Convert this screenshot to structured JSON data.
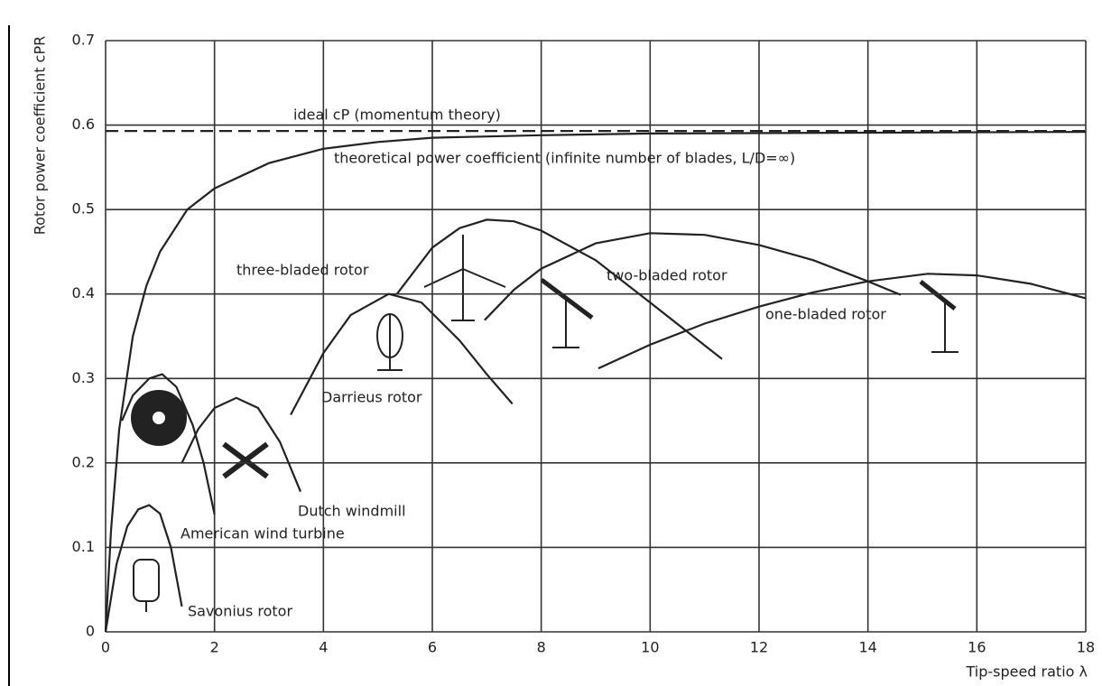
{
  "chart_data": {
    "type": "line",
    "x_label": "Tip-speed ratio λ",
    "y_label": "Rotor power coefficient cPR",
    "xlim": [
      0,
      18
    ],
    "xticks": [
      0,
      2,
      4,
      6,
      8,
      10,
      12,
      14,
      16,
      18
    ],
    "ylim": [
      0,
      0.7
    ],
    "yticks": [
      0,
      0.1,
      0.2,
      0.3,
      0.4,
      0.5,
      0.6,
      0.7
    ],
    "grid": true,
    "series": [
      {
        "name": "ideal cP (momentum theory)",
        "color": "#222",
        "dashed": true,
        "x": [
          0,
          18
        ],
        "values": [
          0.593,
          0.593
        ]
      },
      {
        "name": "theoretical power coefficient (infinite number of blades, L/D=∞)",
        "color": "#222",
        "dashed": false,
        "x": [
          0,
          0.1,
          0.25,
          0.5,
          0.75,
          1,
          1.5,
          2,
          3,
          4,
          5,
          6,
          8,
          10,
          14,
          18
        ],
        "values": [
          0,
          0.12,
          0.24,
          0.35,
          0.41,
          0.45,
          0.5,
          0.525,
          0.555,
          0.572,
          0.58,
          0.585,
          0.588,
          0.59,
          0.591,
          0.592
        ]
      },
      {
        "name": "three-bladed rotor",
        "color": "#222",
        "dashed": false,
        "x": [
          5.35,
          6,
          6.5,
          7,
          7.5,
          8,
          9,
          10,
          11.32
        ],
        "values": [
          0.4,
          0.455,
          0.478,
          0.488,
          0.486,
          0.475,
          0.44,
          0.39,
          0.323
        ]
      },
      {
        "name": "two-bladed rotor",
        "color": "#222",
        "dashed": false,
        "x": [
          6.96,
          7.5,
          8,
          9,
          10,
          11,
          12,
          13,
          14,
          14.6
        ],
        "values": [
          0.369,
          0.405,
          0.43,
          0.46,
          0.472,
          0.47,
          0.458,
          0.44,
          0.415,
          0.399
        ]
      },
      {
        "name": "one-bladed rotor",
        "color": "#222",
        "dashed": false,
        "x": [
          9.05,
          10,
          11,
          12,
          13,
          14,
          15.1,
          16,
          17,
          18
        ],
        "values": [
          0.312,
          0.34,
          0.365,
          0.385,
          0.402,
          0.415,
          0.424,
          0.422,
          0.412,
          0.395
        ]
      },
      {
        "name": "Darrieus rotor",
        "color": "#222",
        "dashed": false,
        "x": [
          3.4,
          4,
          4.5,
          5.2,
          5.8,
          6.5,
          7,
          7.47
        ],
        "values": [
          0.257,
          0.33,
          0.375,
          0.4,
          0.39,
          0.345,
          0.305,
          0.27
        ]
      },
      {
        "name": "Dutch windmill",
        "color": "#222",
        "dashed": false,
        "x": [
          1.4,
          1.7,
          2,
          2.4,
          2.8,
          3.2,
          3.58
        ],
        "values": [
          0.2,
          0.24,
          0.265,
          0.277,
          0.265,
          0.225,
          0.166
        ]
      },
      {
        "name": "American wind turbine",
        "color": "#222",
        "dashed": false,
        "x": [
          0.3,
          0.5,
          0.8,
          1.04,
          1.3,
          1.6,
          1.8,
          2
        ],
        "values": [
          0.25,
          0.28,
          0.3,
          0.305,
          0.29,
          0.245,
          0.2,
          0.139
        ]
      },
      {
        "name": "Savonius rotor",
        "color": "#222",
        "dashed": false,
        "x": [
          0,
          0.2,
          0.4,
          0.6,
          0.8,
          1,
          1.2,
          1.4
        ],
        "values": [
          0,
          0.08,
          0.125,
          0.145,
          0.15,
          0.14,
          0.1,
          0.03
        ]
      }
    ]
  }
}
